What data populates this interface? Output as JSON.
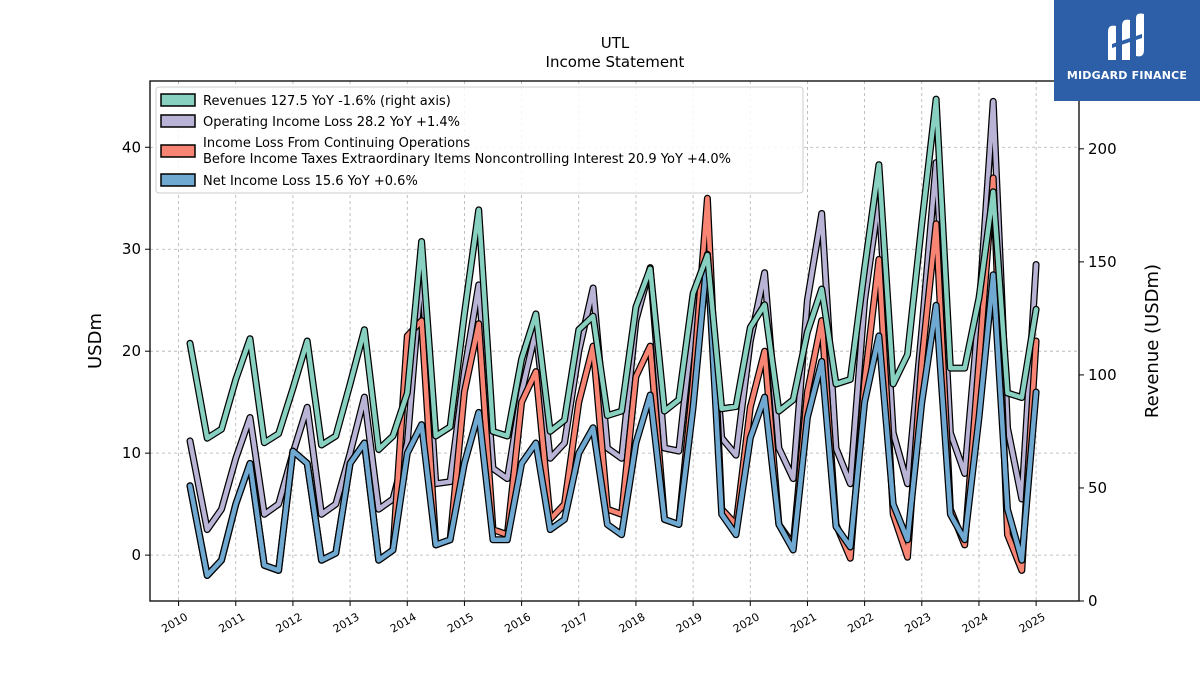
{
  "logo": {
    "brand": "MIDGARD FINANCE",
    "accent": "#2c5fa8"
  },
  "chart_data": {
    "type": "line",
    "title": "UTL",
    "subtitle": "Income Statement",
    "ylabel": "USDm",
    "ylabel_right": "Revenue (USDm)",
    "x_ticks": [
      "2010",
      "2011",
      "2012",
      "2013",
      "2014",
      "2015",
      "2016",
      "2017",
      "2018",
      "2019",
      "2020",
      "2021",
      "2022",
      "2023",
      "2024",
      "2025"
    ],
    "ylim": [
      -4.5,
      46.5
    ],
    "ylim_right": [
      0,
      230
    ],
    "y_ticks": [
      0,
      10,
      20,
      30,
      40
    ],
    "y_ticks_right": [
      0,
      50,
      100,
      150,
      200
    ],
    "grid": true,
    "legend_position": "top-left",
    "x": [
      2010.2,
      2010.5,
      2010.75,
      2011.0,
      2011.25,
      2011.5,
      2011.75,
      2012.0,
      2012.25,
      2012.5,
      2012.75,
      2013.0,
      2013.25,
      2013.5,
      2013.75,
      2014.0,
      2014.25,
      2014.5,
      2014.75,
      2015.0,
      2015.25,
      2015.5,
      2015.75,
      2016.0,
      2016.25,
      2016.5,
      2016.75,
      2017.0,
      2017.25,
      2017.5,
      2017.75,
      2018.0,
      2018.25,
      2018.5,
      2018.75,
      2019.0,
      2019.25,
      2019.5,
      2019.75,
      2020.0,
      2020.25,
      2020.5,
      2020.75,
      2021.0,
      2021.25,
      2021.5,
      2021.75,
      2022.0,
      2022.25,
      2022.5,
      2022.75,
      2023.0,
      2023.25,
      2023.5,
      2023.75,
      2024.0,
      2024.25,
      2024.5,
      2024.75,
      2025.0
    ],
    "series": [
      {
        "name": "Revenues",
        "legend": "Revenues  127.5 YoY -1.6% (right axis)",
        "axis": "right",
        "color": "#88d1c1",
        "values": [
          114,
          72,
          76,
          98,
          116,
          70,
          74,
          94,
          115,
          69,
          73,
          96,
          120,
          67,
          73,
          92,
          159,
          73,
          77,
          127,
          173,
          75,
          73,
          107,
          127,
          75,
          80,
          120,
          126,
          82,
          84,
          130,
          147,
          84,
          89,
          136,
          153,
          85,
          86,
          121,
          131,
          84,
          89,
          119,
          138,
          96,
          98,
          147,
          193,
          96,
          109,
          167,
          222,
          103,
          103,
          134,
          181,
          92,
          90,
          129
        ]
      },
      {
        "name": "Operating Income Loss",
        "legend": "Operating Income Loss  28.2 YoY +1.4%",
        "axis": "left",
        "color": "#b9b4d6",
        "values": [
          11.2,
          2.5,
          4.5,
          9.5,
          13.5,
          4.0,
          5.0,
          10.0,
          14.5,
          4.0,
          5.0,
          10.0,
          15.5,
          4.5,
          5.5,
          11.0,
          28.0,
          7.0,
          7.2,
          18.0,
          26.5,
          8.5,
          7.5,
          16.0,
          22.0,
          9.5,
          11.0,
          20.0,
          26.2,
          10.5,
          9.5,
          23.0,
          28.2,
          10.5,
          10.2,
          23.0,
          29.5,
          11.5,
          9.8,
          21.0,
          27.7,
          10.5,
          7.5,
          25.0,
          33.5,
          10.5,
          7.0,
          25.0,
          35.0,
          12.0,
          7.0,
          22.0,
          38.5,
          12.0,
          8.0,
          24.0,
          44.5,
          12.5,
          5.5,
          28.5
        ]
      },
      {
        "name": "Income Loss From Continuing Operations Before Income Taxes Extraordinary Items Noncontrolling Interest",
        "legend_line1": "Income Loss From Continuing Operations",
        "legend_line2": "Before Income Taxes Extraordinary Items Noncontrolling Interest  20.9 YoY +4.0%",
        "axis": "left",
        "color": "#f88573",
        "values": [
          6.8,
          -2.0,
          -0.5,
          5.0,
          9.0,
          -1.0,
          -1.5,
          10.2,
          9.0,
          -0.5,
          0.2,
          9.0,
          11.0,
          -0.5,
          0.5,
          21.5,
          23.0,
          1.0,
          1.5,
          16.0,
          22.7,
          2.5,
          2.0,
          15.0,
          18.0,
          3.5,
          5.0,
          15.0,
          20.5,
          4.5,
          4.0,
          17.5,
          20.5,
          3.5,
          3.0,
          17.0,
          35.0,
          4.5,
          3.0,
          14.5,
          20.0,
          3.0,
          1.0,
          16.0,
          23.0,
          3.0,
          -0.3,
          17.0,
          29.0,
          4.0,
          -0.2,
          19.0,
          32.5,
          4.5,
          1.0,
          19.0,
          37.0,
          2.0,
          -1.5,
          21.0
        ]
      },
      {
        "name": "Net Income Loss",
        "legend": "Net Income Loss  15.6 YoY +0.6%",
        "axis": "left",
        "color": "#6fa8d0",
        "values": [
          6.8,
          -2.0,
          -0.5,
          5.0,
          9.0,
          -1.0,
          -1.5,
          10.2,
          9.0,
          -0.5,
          0.2,
          9.0,
          11.0,
          -0.5,
          0.5,
          10.0,
          12.8,
          1.0,
          1.5,
          9.0,
          14.0,
          1.5,
          1.5,
          9.0,
          11.0,
          2.5,
          3.5,
          10.0,
          12.5,
          3.0,
          2.0,
          11.0,
          15.7,
          3.5,
          3.0,
          14.5,
          29.5,
          4.0,
          2.0,
          11.5,
          15.5,
          3.0,
          0.5,
          13.5,
          19.0,
          2.8,
          0.8,
          15.0,
          21.5,
          5.0,
          1.5,
          15.0,
          24.5,
          4.0,
          1.5,
          13.5,
          27.5,
          4.5,
          -0.5,
          16.0
        ]
      }
    ]
  }
}
